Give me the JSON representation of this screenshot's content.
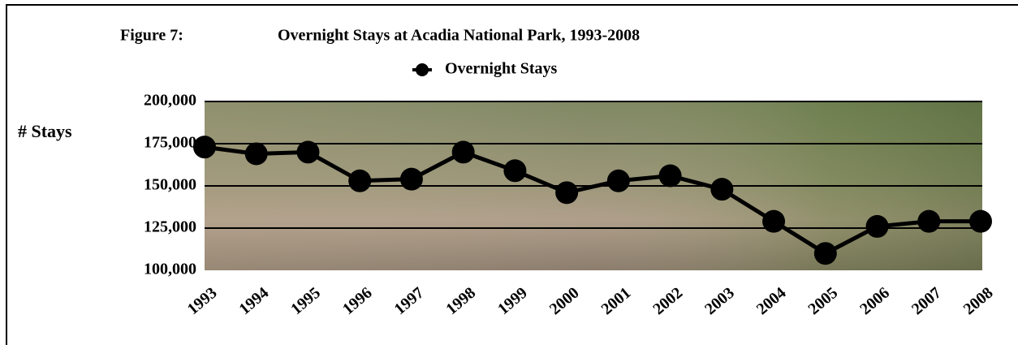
{
  "chart_data": {
    "type": "line",
    "title": "Overnight Stays at Acadia National Park, 1993-2008",
    "figure_label": "Figure 7:",
    "y_label": "# Stays",
    "categories": [
      "1993",
      "1994",
      "1995",
      "1996",
      "1997",
      "1998",
      "1999",
      "2000",
      "2001",
      "2002",
      "2003",
      "2004",
      "2005",
      "2006",
      "2007",
      "2008"
    ],
    "series": [
      {
        "name": "Overnight Stays",
        "color": "#000000",
        "values": [
          173000,
          169000,
          170000,
          153000,
          154000,
          170000,
          159000,
          146000,
          153000,
          156000,
          148000,
          129000,
          110000,
          126000,
          129000,
          129000
        ]
      }
    ],
    "ylim": [
      100000,
      200000
    ],
    "yticks": [
      {
        "value": 100000,
        "label": "100,000"
      },
      {
        "value": 125000,
        "label": "125,000"
      },
      {
        "value": 150000,
        "label": "150,000"
      },
      {
        "value": 175000,
        "label": "175,000"
      },
      {
        "value": 200000,
        "label": "200,000"
      }
    ],
    "grid": true,
    "legend": "top"
  }
}
